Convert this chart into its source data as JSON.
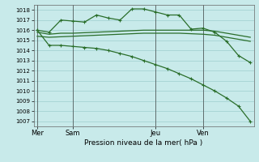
{
  "background_color": "#c8eaea",
  "grid_color": "#9ecece",
  "line_color": "#2a6e2a",
  "xlabel": "Pression niveau de la mer( hPa )",
  "ylim": [
    1006.5,
    1018.5
  ],
  "yticks": [
    1007,
    1008,
    1009,
    1010,
    1011,
    1012,
    1013,
    1014,
    1015,
    1016,
    1017,
    1018
  ],
  "xtick_labels": [
    "Mer",
    "Sam",
    "Jeu",
    "Ven"
  ],
  "xtick_positions": [
    0,
    3,
    10,
    14
  ],
  "n_points": 19,
  "series1": [
    1016.0,
    1015.8,
    1017.0,
    1016.9,
    1016.8,
    1017.5,
    1017.2,
    1017.0,
    1018.1,
    1018.1,
    1017.8,
    1017.5,
    1017.5,
    1016.1,
    1016.2,
    1015.8,
    1014.9,
    1013.5,
    1012.8
  ],
  "series2": [
    1015.8,
    1015.6,
    1015.7,
    1015.7,
    1015.75,
    1015.8,
    1015.85,
    1015.9,
    1015.95,
    1016.0,
    1016.0,
    1016.0,
    1016.0,
    1016.0,
    1016.0,
    1015.9,
    1015.7,
    1015.5,
    1015.3
  ],
  "series3": [
    1015.4,
    1015.3,
    1015.35,
    1015.4,
    1015.45,
    1015.5,
    1015.55,
    1015.6,
    1015.65,
    1015.7,
    1015.7,
    1015.7,
    1015.7,
    1015.65,
    1015.6,
    1015.5,
    1015.3,
    1015.1,
    1014.9
  ],
  "series4": [
    1016.0,
    1014.5,
    1014.5,
    1014.4,
    1014.3,
    1014.2,
    1014.0,
    1013.7,
    1013.4,
    1013.0,
    1012.6,
    1012.2,
    1011.7,
    1011.2,
    1010.6,
    1010.0,
    1009.3,
    1008.5,
    1007.0
  ]
}
